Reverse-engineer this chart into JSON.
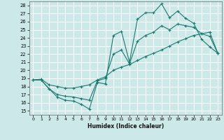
{
  "xlabel": "Humidex (Indice chaleur)",
  "background_color": "#cce8e8",
  "grid_color": "#b0d8d8",
  "line_color": "#1a7a6e",
  "xlim": [
    -0.5,
    23.5
  ],
  "ylim": [
    14.5,
    28.5
  ],
  "xticks": [
    0,
    1,
    2,
    3,
    4,
    5,
    6,
    7,
    8,
    9,
    10,
    11,
    12,
    13,
    14,
    15,
    16,
    17,
    18,
    19,
    20,
    21,
    22,
    23
  ],
  "yticks": [
    15,
    16,
    17,
    18,
    19,
    20,
    21,
    22,
    23,
    24,
    25,
    26,
    27,
    28
  ],
  "series1_x": [
    0,
    1,
    2,
    3,
    4,
    5,
    6,
    7,
    8,
    9,
    10,
    11,
    12,
    13,
    14,
    15,
    16,
    17,
    18,
    19,
    20,
    21,
    22,
    23
  ],
  "series1_y": [
    18.8,
    18.8,
    17.7,
    16.7,
    16.3,
    16.2,
    15.8,
    15.2,
    18.5,
    18.3,
    24.3,
    24.8,
    21.0,
    26.3,
    27.1,
    27.1,
    28.2,
    26.5,
    27.3,
    26.4,
    25.8,
    23.8,
    22.9,
    22.1
  ],
  "series2_x": [
    0,
    1,
    2,
    3,
    4,
    5,
    6,
    7,
    8,
    9,
    10,
    11,
    12,
    13,
    14,
    15,
    16,
    17,
    18,
    19,
    20,
    21,
    22,
    23
  ],
  "series2_y": [
    18.8,
    18.8,
    17.7,
    17.0,
    16.8,
    16.7,
    16.5,
    16.3,
    18.7,
    19.0,
    22.0,
    22.5,
    20.8,
    23.6,
    24.3,
    24.7,
    25.5,
    25.0,
    25.7,
    25.5,
    25.3,
    24.5,
    24.2,
    22.1
  ],
  "series3_x": [
    0,
    1,
    2,
    3,
    4,
    5,
    6,
    7,
    8,
    9,
    10,
    11,
    12,
    13,
    14,
    15,
    16,
    17,
    18,
    19,
    20,
    21,
    22,
    23
  ],
  "series3_y": [
    18.8,
    18.9,
    18.2,
    18.0,
    17.8,
    17.8,
    18.0,
    18.2,
    18.8,
    19.2,
    20.0,
    20.4,
    20.7,
    21.2,
    21.7,
    22.1,
    22.5,
    23.0,
    23.5,
    23.9,
    24.3,
    24.5,
    24.7,
    22.1
  ]
}
